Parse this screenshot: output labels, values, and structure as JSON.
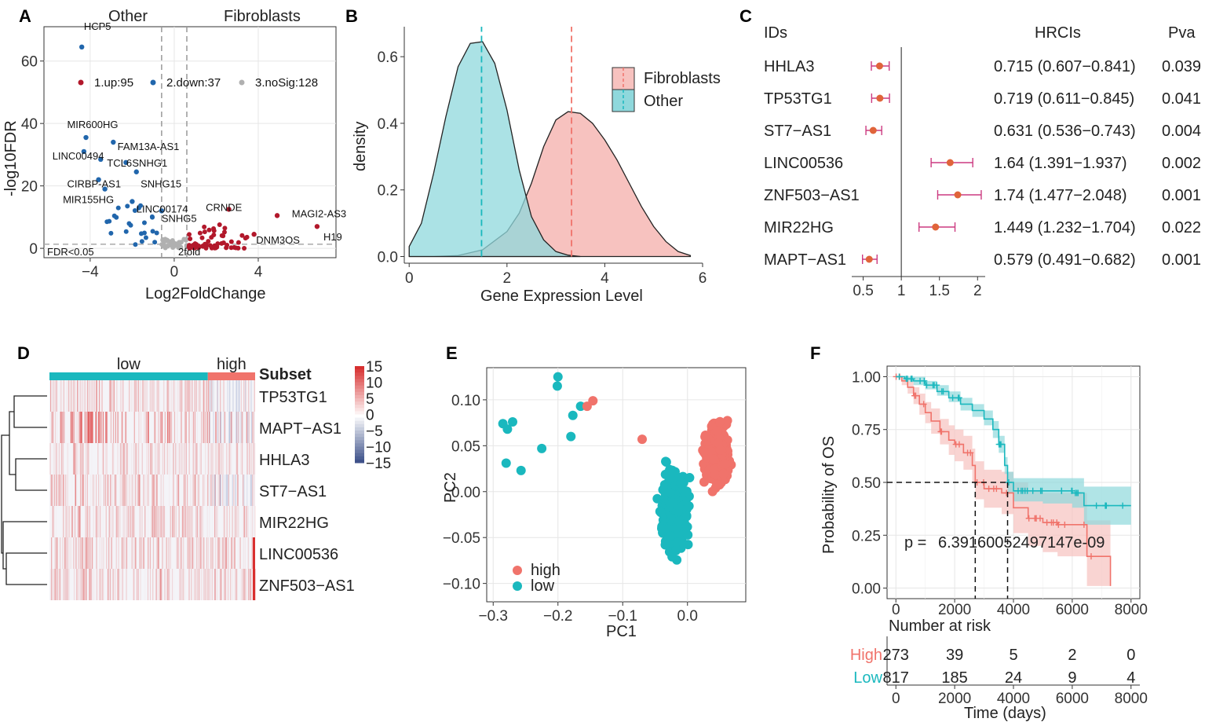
{
  "colors": {
    "up": "#b2182b",
    "down": "#2166ac",
    "nosig": "#b0b0b0",
    "red": "#f0736b",
    "teal": "#1ab8be",
    "pinkfill": "#f7c2bf",
    "tealfill": "#8fd8dc",
    "forest": "#e0643a",
    "ci": "#cc3a80"
  },
  "chart_data": [
    {
      "panel": "A",
      "type": "scatter",
      "xlabel": "Log2FoldChange",
      "ylabel": "-log10FDR",
      "header_left": "Other",
      "header_right": "Fibroblasts",
      "xlim": [
        -6.2,
        7.7
      ],
      "ylim": [
        -3,
        71
      ],
      "xticks": [
        {
          "v": -4,
          "t": "−4"
        },
        {
          "v": 0,
          "t": "0"
        },
        {
          "v": 4,
          "t": "4"
        }
      ],
      "yticks": [
        {
          "v": 0,
          "t": "0"
        },
        {
          "v": 20,
          "t": "20"
        },
        {
          "v": 40,
          "t": "40"
        },
        {
          "v": 60,
          "t": "60"
        }
      ],
      "legend": [
        {
          "label": "1.up:95",
          "group": "up"
        },
        {
          "label": "2.down:37",
          "group": "down"
        },
        {
          "label": "3.noSig:128",
          "group": "nosig"
        }
      ],
      "annotations": [
        {
          "text": "FDR<0.05"
        },
        {
          "text": "2fold"
        }
      ],
      "labeled_points": [
        {
          "label": "HCP5",
          "x": -4.4,
          "y": 64.5,
          "group": "down",
          "lx": -4.3,
          "ly": 70
        },
        {
          "label": "MIR600HG",
          "x": -4.2,
          "y": 35.5,
          "group": "down",
          "lx": -5.1,
          "ly": 38.5
        },
        {
          "label": "FAM13A-AS1",
          "x": -2.9,
          "y": 34,
          "group": "down",
          "lx": -2.7,
          "ly": 31.5
        },
        {
          "label": "LINC00494",
          "x": -4.3,
          "y": 31,
          "group": "down",
          "lx": -5.8,
          "ly": 28.5
        },
        {
          "label": "TCL6",
          "x": -3.5,
          "y": 28.5,
          "group": "down",
          "lx": -3.2,
          "ly": 26.2
        },
        {
          "label": "SNHG1",
          "x": -2.3,
          "y": 27.5,
          "group": "down",
          "lx": -2.0,
          "ly": 26.2
        },
        {
          "label": "CIRBP-AS1",
          "x": -3.6,
          "y": 22,
          "group": "down",
          "lx": -5.1,
          "ly": 19.5
        },
        {
          "label": "SNHG15",
          "x": -1.8,
          "y": 24.5,
          "group": "down",
          "lx": -1.6,
          "ly": 19.5
        },
        {
          "label": "MIR155HG",
          "x": -3.3,
          "y": 19,
          "group": "down",
          "lx": -5.3,
          "ly": 14.5
        },
        {
          "label": "LINC00174",
          "x": -2,
          "y": 15,
          "group": "down",
          "lx": -1.8,
          "ly": 11.5
        },
        {
          "label": "SNHG5",
          "x": -0.6,
          "y": 12,
          "group": "down",
          "lx": -0.6,
          "ly": 8.5
        },
        {
          "label": "CRNDE",
          "x": 2.6,
          "y": 12.5,
          "group": "up",
          "lx": 1.5,
          "ly": 12
        },
        {
          "label": "MAGI2-AS3",
          "x": 4.9,
          "y": 10.5,
          "group": "up",
          "lx": 5.6,
          "ly": 10
        },
        {
          "label": "DNM3OS",
          "x": 3.8,
          "y": 4.5,
          "group": "up",
          "lx": 3.9,
          "ly": 1.5
        },
        {
          "label": "H19",
          "x": 6.8,
          "y": 7,
          "group": "up",
          "lx": 7.1,
          "ly": 2.5
        }
      ]
    },
    {
      "panel": "B",
      "type": "area",
      "xlabel": "Gene Expression Level",
      "ylabel": "density",
      "xlim": [
        -0.1,
        6.0
      ],
      "ylim": [
        -0.02,
        0.69
      ],
      "xticks": [
        {
          "v": 0,
          "t": "0"
        },
        {
          "v": 2,
          "t": "2"
        },
        {
          "v": 4,
          "t": "4"
        },
        {
          "v": 6,
          "t": "6"
        }
      ],
      "yticks": [
        {
          "v": 0,
          "t": "0.0"
        },
        {
          "v": 0.2,
          "t": "0.2"
        },
        {
          "v": 0.4,
          "t": "0.4"
        },
        {
          "v": 0.6,
          "t": "0.6"
        }
      ],
      "series": [
        {
          "name": "Fibroblasts",
          "mean": 3.32,
          "x": [
            0,
            0.5,
            1,
            1.5,
            2,
            2.25,
            2.5,
            2.75,
            3,
            3.25,
            3.5,
            3.75,
            4,
            4.25,
            4.5,
            4.75,
            5,
            5.25,
            5.5,
            5.75
          ],
          "y": [
            0,
            0,
            0.003,
            0.02,
            0.075,
            0.13,
            0.22,
            0.33,
            0.41,
            0.435,
            0.43,
            0.4,
            0.35,
            0.29,
            0.22,
            0.15,
            0.09,
            0.045,
            0.015,
            0.003
          ]
        },
        {
          "name": "Other",
          "mean": 1.48,
          "x": [
            0,
            0.25,
            0.5,
            0.75,
            1,
            1.25,
            1.5,
            1.75,
            2,
            2.25,
            2.5,
            2.75,
            3,
            3.25,
            3.5
          ],
          "y": [
            0.03,
            0.1,
            0.25,
            0.42,
            0.57,
            0.64,
            0.645,
            0.58,
            0.44,
            0.26,
            0.12,
            0.05,
            0.015,
            0.004,
            0
          ]
        }
      ]
    },
    {
      "panel": "C",
      "type": "forest",
      "headers": {
        "ids": "IDs",
        "hr": "HRCIs",
        "p": "Pva"
      },
      "xlim": [
        0.35,
        2.1
      ],
      "xticks": [
        {
          "v": 0.5,
          "t": "0.5"
        },
        {
          "v": 1,
          "t": "1"
        },
        {
          "v": 1.5,
          "t": "1.5"
        },
        {
          "v": 2,
          "t": "2"
        }
      ],
      "rows": [
        {
          "id": "HHLA3",
          "hr": 0.715,
          "lo": 0.607,
          "hi": 0.841,
          "hr_text": "0.715 (0.607−0.841)",
          "p": "0.039"
        },
        {
          "id": "TP53TG1",
          "hr": 0.719,
          "lo": 0.611,
          "hi": 0.845,
          "hr_text": "0.719 (0.611−0.845)",
          "p": "0.041"
        },
        {
          "id": "ST7−AS1",
          "hr": 0.631,
          "lo": 0.536,
          "hi": 0.743,
          "hr_text": "0.631 (0.536−0.743)",
          "p": "0.004"
        },
        {
          "id": "LINC00536",
          "hr": 1.64,
          "lo": 1.391,
          "hi": 1.937,
          "hr_text": "1.64 (1.391−1.937)",
          "p": "0.002"
        },
        {
          "id": "ZNF503−AS1",
          "hr": 1.74,
          "lo": 1.477,
          "hi": 2.048,
          "hr_text": "1.74 (1.477−2.048)",
          "p": "0.001"
        },
        {
          "id": "MIR22HG",
          "hr": 1.449,
          "lo": 1.232,
          "hi": 1.704,
          "hr_text": "1.449 (1.232−1.704)",
          "p": "0.022"
        },
        {
          "id": "MAPT−AS1",
          "hr": 0.579,
          "lo": 0.491,
          "hi": 0.682,
          "hr_text": "0.579 (0.491−0.682)",
          "p": "0.001"
        }
      ]
    },
    {
      "panel": "D",
      "type": "heatmap",
      "rows": [
        "TP53TG1",
        "MAPT−AS1",
        "HHLA3",
        "ST7−AS1",
        "MIR22HG",
        "LINC00536",
        "ZNF503−AS1"
      ],
      "groups": [
        {
          "label": "low",
          "fraction": 0.77
        },
        {
          "label": "high",
          "fraction": 0.23
        }
      ],
      "annotation_title": "Subset",
      "colorbar": {
        "ticks": [
          {
            "v": 15,
            "t": "15"
          },
          {
            "v": 10,
            "t": "10"
          },
          {
            "v": 5,
            "t": "5"
          },
          {
            "v": 0,
            "t": "0"
          },
          {
            "v": -5,
            "t": "−5"
          },
          {
            "v": -10,
            "t": "−10"
          },
          {
            "v": -15,
            "t": "−15"
          }
        ],
        "range": [
          -15,
          15
        ]
      },
      "row_red_intensity": [
        0.35,
        0.55,
        0.3,
        0.4,
        0.3,
        0.35,
        0.35
      ]
    },
    {
      "panel": "E",
      "type": "scatter",
      "xlabel": "PC1",
      "ylabel": "PC2",
      "xlim": [
        -0.31,
        0.09
      ],
      "ylim": [
        -0.12,
        0.135
      ],
      "xticks": [
        {
          "v": -0.3,
          "t": "−0.3"
        },
        {
          "v": -0.2,
          "t": "−0.2"
        },
        {
          "v": -0.1,
          "t": "−0.1"
        },
        {
          "v": 0,
          "t": "0.0"
        }
      ],
      "yticks": [
        {
          "v": 0.1,
          "t": "0.10"
        },
        {
          "v": 0.05,
          "t": "0.05"
        },
        {
          "v": 0,
          "t": "0.00"
        },
        {
          "v": -0.05,
          "t": "−0.05"
        },
        {
          "v": -0.1,
          "t": "−0.10"
        }
      ],
      "legend": [
        {
          "label": "high",
          "group": "high"
        },
        {
          "label": "low",
          "group": "low"
        }
      ],
      "outliers": [
        {
          "x": -0.2,
          "y": 0.125,
          "group": "low"
        },
        {
          "x": -0.201,
          "y": 0.115,
          "group": "low"
        },
        {
          "x": -0.165,
          "y": 0.093,
          "group": "low"
        },
        {
          "x": -0.285,
          "y": 0.074,
          "group": "low"
        },
        {
          "x": -0.27,
          "y": 0.076,
          "group": "low"
        },
        {
          "x": -0.278,
          "y": 0.068,
          "group": "low"
        },
        {
          "x": -0.177,
          "y": 0.083,
          "group": "low"
        },
        {
          "x": -0.18,
          "y": 0.06,
          "group": "low"
        },
        {
          "x": -0.225,
          "y": 0.047,
          "group": "low"
        },
        {
          "x": -0.28,
          "y": 0.031,
          "group": "low"
        },
        {
          "x": -0.257,
          "y": 0.023,
          "group": "low"
        },
        {
          "x": -0.155,
          "y": 0.093,
          "group": "high"
        },
        {
          "x": -0.146,
          "y": 0.099,
          "group": "high"
        },
        {
          "x": -0.07,
          "y": 0.057,
          "group": "high"
        }
      ]
    },
    {
      "panel": "F",
      "type": "line",
      "title_ylabel": "Probability of OS",
      "xlabel": "Time (days)",
      "xlim": [
        -300,
        8300
      ],
      "ylim": [
        -0.05,
        1.05
      ],
      "xticks": [
        {
          "v": 0,
          "t": "0"
        },
        {
          "v": 2000,
          "t": "2000"
        },
        {
          "v": 4000,
          "t": "4000"
        },
        {
          "v": 6000,
          "t": "6000"
        },
        {
          "v": 8000,
          "t": "8000"
        }
      ],
      "yticks": [
        {
          "v": 0,
          "t": "0.00"
        },
        {
          "v": 0.25,
          "t": "0.25"
        },
        {
          "v": 0.5,
          "t": "0.50"
        },
        {
          "v": 0.75,
          "t": "0.75"
        },
        {
          "v": 1,
          "t": "1.00"
        }
      ],
      "pvalue_label": "p = ",
      "pvalue": "6.39160052497147e-09",
      "median_high": 2700,
      "median_low": 3800,
      "series": [
        {
          "name": "High",
          "t": [
            0,
            200,
            400,
            600,
            800,
            1000,
            1200,
            1500,
            1800,
            2000,
            2300,
            2600,
            2700,
            3000,
            3300,
            3600,
            4000,
            4500,
            5000,
            5500,
            6000,
            6500,
            7000,
            7300
          ],
          "s": [
            1,
            0.98,
            0.95,
            0.91,
            0.87,
            0.83,
            0.79,
            0.74,
            0.7,
            0.68,
            0.64,
            0.58,
            0.5,
            0.47,
            0.47,
            0.45,
            0.38,
            0.33,
            0.31,
            0.3,
            0.3,
            0.15,
            0.15,
            0.01
          ],
          "lo": [
            1,
            0.96,
            0.92,
            0.87,
            0.82,
            0.78,
            0.73,
            0.68,
            0.63,
            0.6,
            0.56,
            0.5,
            0.42,
            0.38,
            0.38,
            0.35,
            0.26,
            0.2,
            0.17,
            0.15,
            0.15,
            0.01,
            0.01,
            0.01
          ],
          "hi": [
            1,
            1,
            0.98,
            0.95,
            0.92,
            0.88,
            0.85,
            0.8,
            0.77,
            0.75,
            0.72,
            0.66,
            0.6,
            0.56,
            0.56,
            0.55,
            0.5,
            0.46,
            0.45,
            0.45,
            0.45,
            0.32,
            0.32,
            0.32
          ]
        },
        {
          "name": "Low",
          "t": [
            0,
            300,
            600,
            1000,
            1400,
            1800,
            2200,
            2600,
            3000,
            3300,
            3500,
            3700,
            3800,
            4000,
            5000,
            6000,
            6400,
            7000,
            8000
          ],
          "s": [
            1,
            0.99,
            0.98,
            0.96,
            0.93,
            0.9,
            0.87,
            0.84,
            0.8,
            0.75,
            0.68,
            0.58,
            0.5,
            0.46,
            0.46,
            0.45,
            0.39,
            0.39,
            0.39
          ],
          "lo": [
            1,
            0.98,
            0.96,
            0.94,
            0.91,
            0.88,
            0.84,
            0.81,
            0.77,
            0.71,
            0.64,
            0.54,
            0.45,
            0.41,
            0.4,
            0.38,
            0.3,
            0.3,
            0.3
          ],
          "hi": [
            1,
            1,
            1,
            0.98,
            0.96,
            0.93,
            0.9,
            0.87,
            0.84,
            0.79,
            0.72,
            0.62,
            0.55,
            0.52,
            0.52,
            0.52,
            0.48,
            0.48,
            0.48
          ]
        }
      ],
      "risk_table": {
        "title": "Number at risk",
        "rows": [
          {
            "name": "High",
            "values": [
              "273",
              "39",
              "5",
              "2",
              "0"
            ]
          },
          {
            "name": "Low",
            "values": [
              "817",
              "185",
              "24",
              "9",
              "4"
            ]
          }
        ],
        "times": [
          0,
          2000,
          4000,
          6000,
          8000
        ]
      }
    }
  ]
}
